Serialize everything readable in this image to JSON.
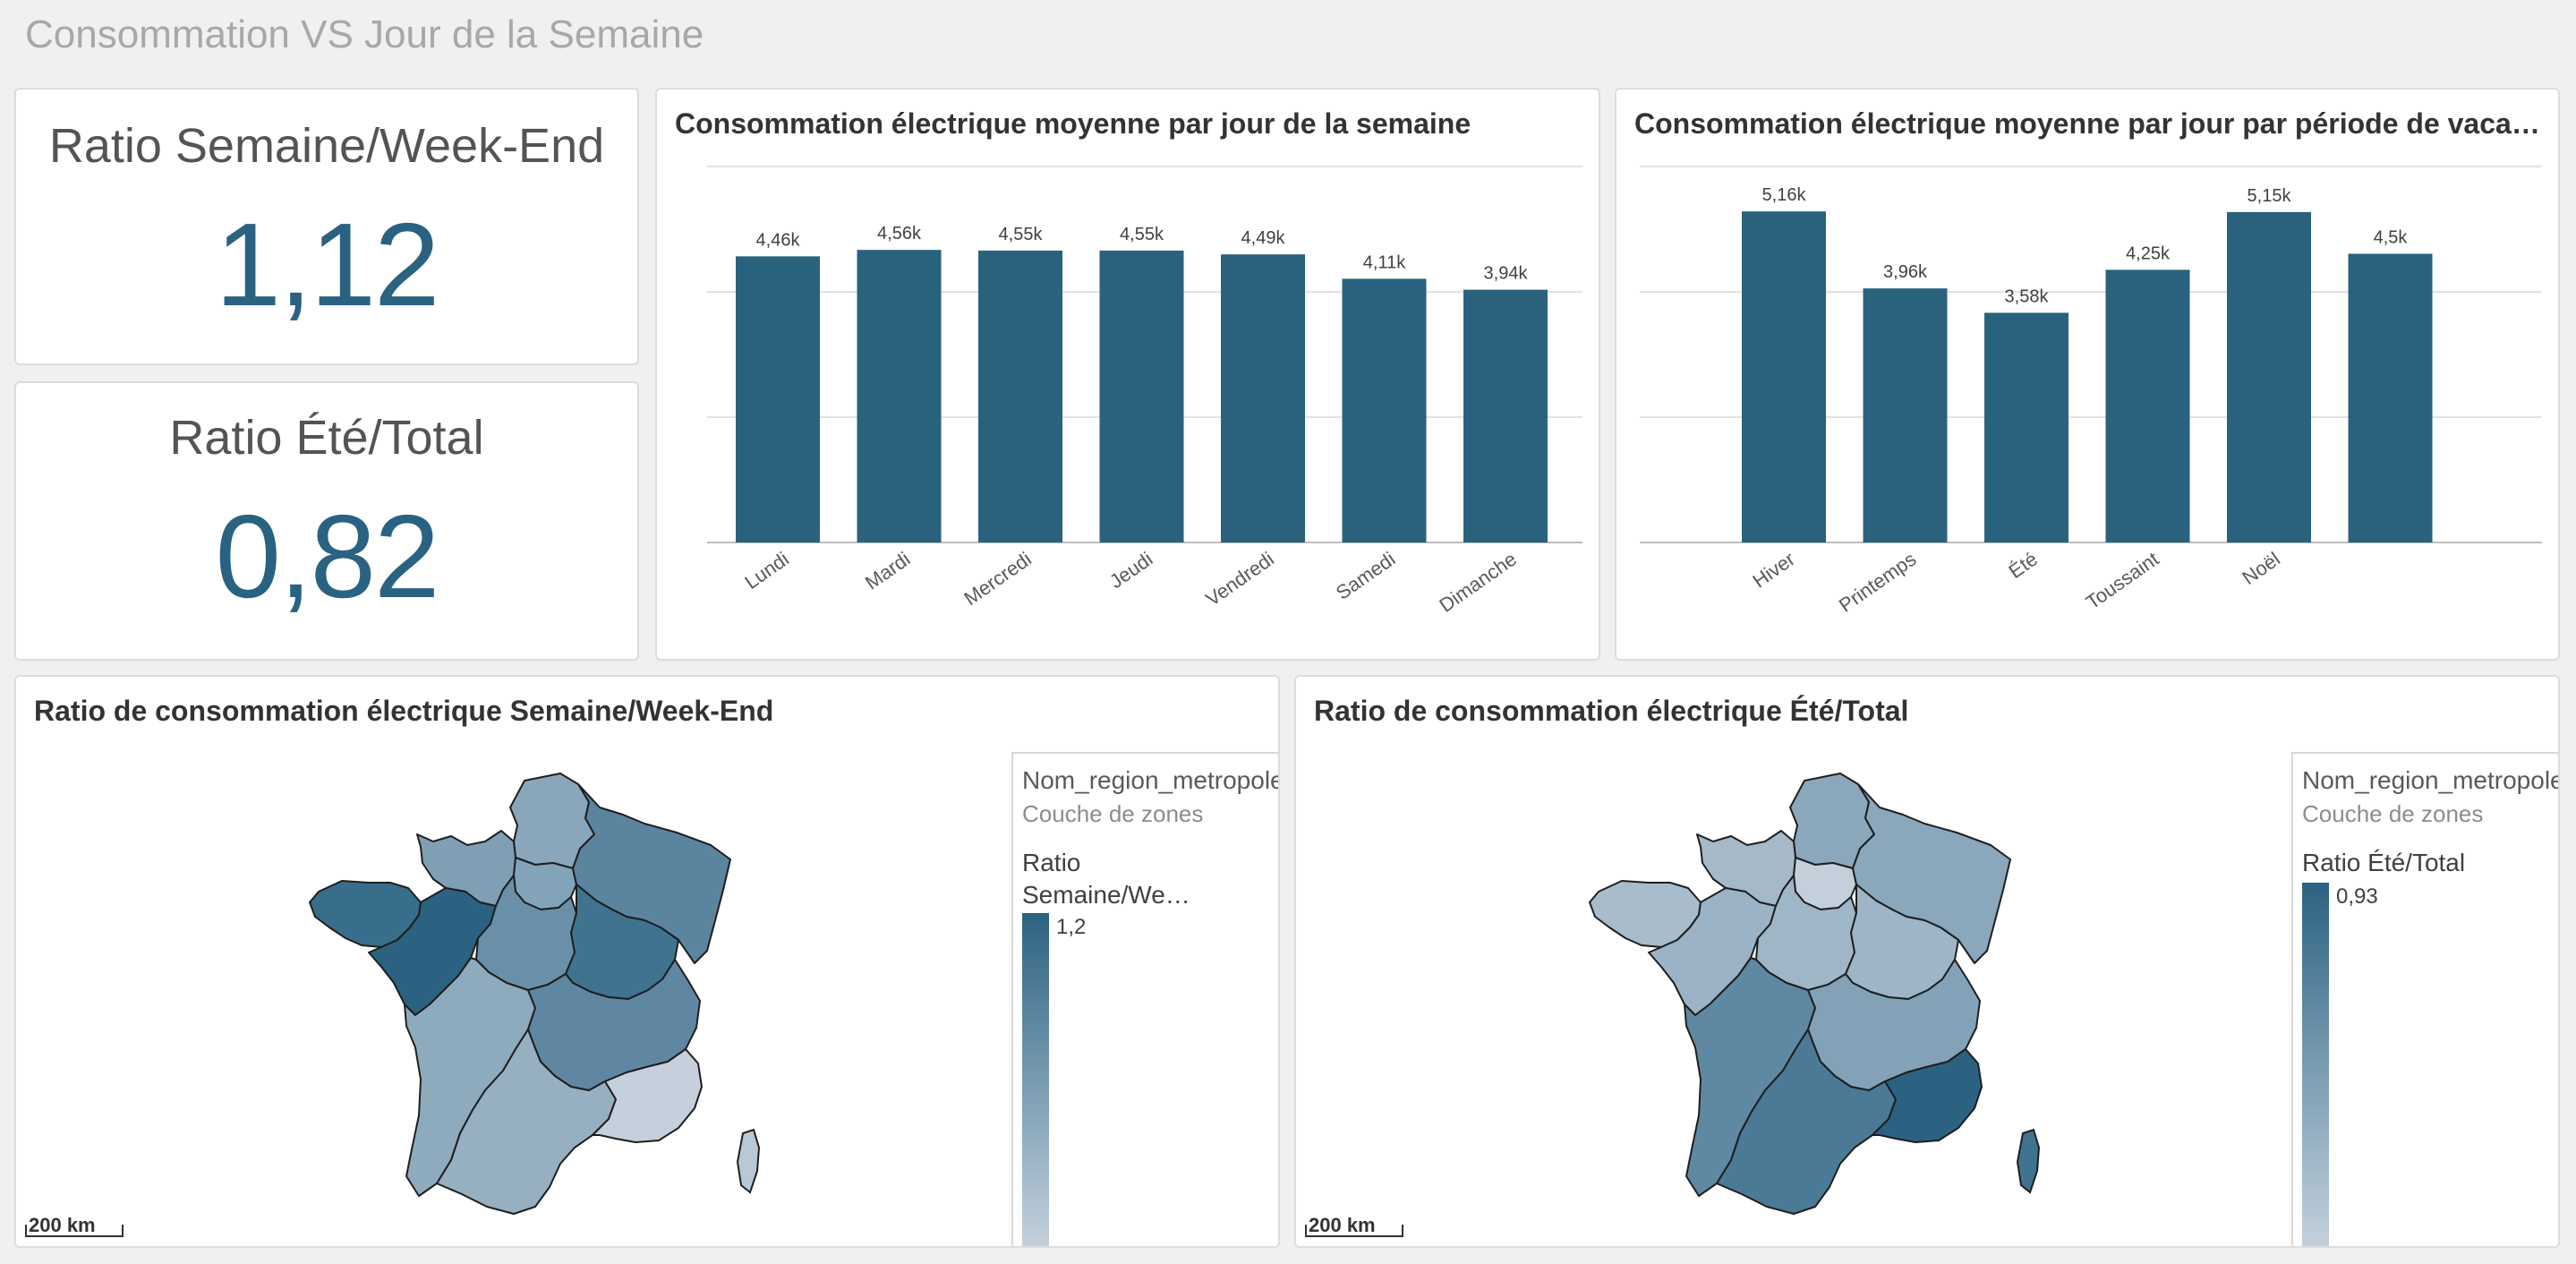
{
  "sheet": {
    "title": "Consommation VS Jour de la Semaine"
  },
  "kpis": [
    {
      "title": "Ratio Semaine/Week-End",
      "value": "1,12"
    },
    {
      "title": "Ratio Été/Total",
      "value": "0,82"
    }
  ],
  "colors": {
    "bar": "#2a627e",
    "kpi_value": "#2a6281",
    "map_scale_dark": "#2b6281",
    "map_scale_light": "#c6d3de"
  },
  "chart_data": [
    {
      "type": "bar",
      "title": "Consommation électrique moyenne par jour de la semaine",
      "categories": [
        "Lundi",
        "Mardi",
        "Mercredi",
        "Jeudi",
        "Vendredi",
        "Samedi",
        "Dimanche"
      ],
      "values": [
        4460,
        4560,
        4550,
        4550,
        4490,
        4110,
        3940
      ],
      "value_labels": [
        "4,46k",
        "4,56k",
        "4,55k",
        "4,55k",
        "4,49k",
        "4,11k",
        "3,94k"
      ],
      "xlabel": "",
      "ylabel": "",
      "ylim": [
        0,
        5860
      ],
      "grid": true
    },
    {
      "type": "bar",
      "title": "Consommation électrique moyenne par jour par période de vacanc…",
      "categories": [
        "Hiver",
        "Printemps",
        "Été",
        "Toussaint",
        "Noël",
        ""
      ],
      "values": [
        5160,
        3960,
        3580,
        4250,
        5150,
        4500
      ],
      "value_labels": [
        "5,16k",
        "3,96k",
        "3,58k",
        "4,25k",
        "5,15k",
        "4,5k"
      ],
      "xlabel": "",
      "ylabel": "",
      "ylim": [
        0,
        5860
      ],
      "grid": true
    }
  ],
  "maps": [
    {
      "title": "Ratio de consommation électrique Semaine/Week-End",
      "legend": {
        "field": "Nom_region_metropole",
        "layer": "Couche de zones",
        "measure": "Ratio Semaine/We…",
        "max_label": "1,2"
      },
      "scale_label": "200 km",
      "region_fills": {
        "hauts_de_france": "#8aa6ba",
        "normandie": "#7f9fb5",
        "bretagne": "#386e8c",
        "pays_de_la_loire": "#2b6281",
        "idf": "#83a3b9",
        "grand_est": "#5b849f",
        "centre": "#6a90a9",
        "bourgogne": "#3f7390",
        "nouvelle_aquitaine": "#8eabbe",
        "auvergne_rhone_alpes": "#5f87a1",
        "occitanie": "#96b0c2",
        "paca": "#c5d0dc",
        "corse": "#b8c8d4"
      }
    },
    {
      "title": "Ratio de consommation électrique Été/Total",
      "legend": {
        "field": "Nom_region_metropole",
        "layer": "Couche de zones",
        "measure": "Ratio Été/Total",
        "max_label": "0,93"
      },
      "scale_label": "200 km",
      "region_fills": {
        "hauts_de_france": "#8ba7bb",
        "normandie": "#a5b9c9",
        "bretagne": "#a8bccb",
        "pays_de_la_loire": "#9bb3c5",
        "idf": "#c3d0dc",
        "grand_est": "#8aa7bb",
        "centre": "#9fb6c7",
        "bourgogne": "#9db5c6",
        "nouvelle_aquitaine": "#5f88a2",
        "auvergne_rhone_alpes": "#83a2b7",
        "occitanie": "#4a7a96",
        "paca": "#2b6281",
        "corse": "#3f7390"
      }
    }
  ]
}
